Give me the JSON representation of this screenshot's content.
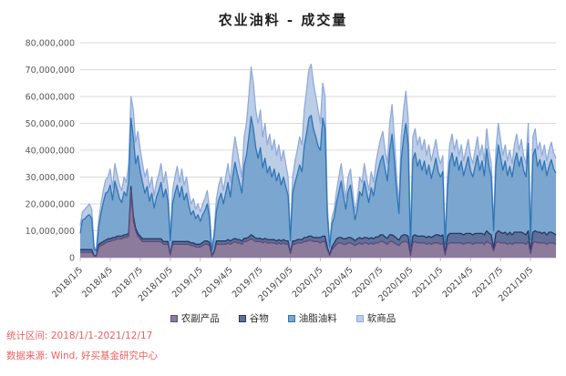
{
  "colors": {
    "note_red": "#f05f5f",
    "axis_text": "#595959",
    "grid_line": "#d9d9d9",
    "axis_line": "#bfbfbf",
    "title_text": "#1f1f1f"
  },
  "footer": {
    "stat_range": "统计区间: 2018/1/1-2021/12/17",
    "data_source": "数据来源: Wind, 好买基金研究中心"
  },
  "chart_data": {
    "type": "area",
    "stacked": true,
    "title": "农业油料 - 成交量",
    "xlabel": "",
    "ylabel": "",
    "unit": 1000000,
    "ylim": [
      0,
      80000000
    ],
    "grid": true,
    "legend_position": "bottom",
    "y_tick_labels": [
      "0",
      "10,000,000",
      "20,000,000",
      "30,000,000",
      "40,000,000",
      "50,000,000",
      "60,000,000",
      "70,000,000",
      "80,000,000"
    ],
    "x_tick_labels": [
      "2018/1/5",
      "2018/4/5",
      "2018/7/5",
      "2018/10/5",
      "2019/1/5",
      "2019/4/5",
      "2019/7/5",
      "2019/10/5",
      "2020/1/5",
      "2020/4/5",
      "2020/7/5",
      "2020/10/5",
      "2021/1/5",
      "2021/4/5",
      "2021/7/5",
      "2021/10/5"
    ],
    "tick_every": 13,
    "series": [
      {
        "name": "农副产品",
        "fill": "#8d7b9c",
        "stroke": "#5d4a7e",
        "values": [
          2,
          2,
          2,
          2,
          2,
          2,
          0.6,
          0.5,
          4,
          4.5,
          5,
          5.5,
          6,
          6,
          6.5,
          6.5,
          7,
          7,
          7,
          7.5,
          7.5,
          8,
          25,
          14,
          10,
          8,
          7,
          6,
          6,
          6,
          6,
          6,
          6,
          6,
          6,
          6,
          5,
          5,
          5,
          1,
          5,
          5,
          5,
          5,
          5,
          5,
          5,
          5,
          4.5,
          4.5,
          4,
          4,
          4,
          4.5,
          5,
          5,
          4.5,
          0.5,
          2,
          5,
          5,
          5,
          5,
          5,
          5.5,
          5,
          5.5,
          6,
          5.5,
          5.5,
          5,
          6,
          6,
          6.5,
          7,
          6.5,
          6,
          6,
          6,
          5.5,
          6,
          5.5,
          5.5,
          5.5,
          5.5,
          5,
          5.5,
          5,
          5.5,
          5,
          5,
          1.5,
          5,
          5,
          5.5,
          5.5,
          5.5,
          6,
          6,
          6.5,
          6.5,
          6,
          6,
          6,
          5.5,
          6,
          6,
          3,
          0.8,
          3,
          4,
          5,
          5.5,
          5.5,
          5,
          5,
          5.5,
          5.5,
          5,
          4.5,
          5,
          5.5,
          5,
          5.5,
          5.5,
          5,
          5.5,
          5,
          5.5,
          5.5,
          6,
          6,
          5.5,
          5,
          6,
          6,
          5.5,
          5,
          4.5,
          5.5,
          6,
          6,
          5.5,
          0.8,
          5.5,
          6,
          5.5,
          5.5,
          5.5,
          5.5,
          5,
          5.5,
          5,
          5.5,
          5.5,
          5.5,
          5,
          5.5,
          1,
          5,
          5.5,
          5.5,
          5.5,
          5.5,
          5.5,
          5.5,
          5,
          5.5,
          5.5,
          5.5,
          5,
          5.5,
          5.5,
          5.5,
          5.5,
          5,
          6,
          5.5,
          5,
          2.5,
          5.5,
          6,
          5.5,
          5.5,
          5.5,
          5,
          5.5,
          5,
          5.5,
          5.5,
          5.5,
          5.5,
          5.5,
          5,
          6,
          1.5,
          5.5,
          6,
          5.5,
          5.5,
          5.5,
          5.5,
          5,
          5.5,
          5.5,
          5.5,
          5
        ]
      },
      {
        "name": "谷物",
        "fill": "#5f7099",
        "stroke": "#203864",
        "values": [
          1,
          1,
          1,
          1,
          1,
          1,
          0.2,
          0.2,
          1,
          1,
          1,
          1,
          1,
          1,
          1,
          1,
          1,
          1,
          1,
          1,
          1,
          1.2,
          1.5,
          1.5,
          1,
          1,
          1,
          1,
          1,
          1,
          1,
          1,
          1,
          1,
          1,
          1,
          1,
          1,
          1,
          0.3,
          1,
          1,
          1,
          1,
          1,
          1,
          1,
          1,
          1,
          1,
          1,
          1,
          1,
          1.2,
          1.2,
          1.2,
          1.2,
          0.2,
          0.5,
          1.2,
          1.2,
          1.2,
          1.2,
          1.2,
          1.2,
          1.2,
          1.2,
          1.2,
          1.2,
          1.2,
          1.2,
          1.2,
          1.2,
          1.2,
          1.5,
          1.5,
          1.2,
          1.2,
          1.2,
          1.2,
          1.2,
          1.2,
          1.2,
          1.2,
          1.2,
          1.2,
          1.2,
          1.2,
          1.2,
          1.2,
          1.2,
          0.4,
          1.2,
          1.2,
          1.2,
          1.2,
          1.2,
          1.5,
          1.5,
          1.5,
          1.5,
          1.5,
          1.5,
          1.5,
          2,
          2,
          2,
          1,
          0.3,
          1,
          1.5,
          2,
          2,
          2,
          2,
          2,
          2,
          2,
          2,
          1.8,
          2,
          2,
          2,
          2,
          2,
          2,
          2,
          2,
          2.2,
          2.2,
          2.5,
          2.5,
          2.2,
          2.2,
          2.5,
          2.5,
          2.5,
          2.2,
          2,
          2.5,
          2.5,
          2.5,
          2.5,
          0.3,
          2.5,
          2.5,
          2.5,
          2.5,
          2.5,
          2.5,
          2.5,
          2.5,
          2.5,
          2.5,
          3,
          3,
          3,
          3,
          0.5,
          3,
          3.5,
          3.5,
          3.5,
          3.5,
          3.5,
          3.5,
          3.5,
          3.5,
          3.5,
          3.5,
          3.5,
          3.5,
          3.5,
          3.5,
          3.5,
          3.5,
          4,
          3.5,
          3.5,
          1,
          3.5,
          4,
          4,
          3.5,
          4,
          3.5,
          4,
          3.5,
          4,
          4,
          4,
          4,
          3.5,
          3.5,
          4,
          0.7,
          4,
          4,
          4,
          4,
          3.5,
          4,
          3.5,
          4,
          4,
          3.5,
          3.5
        ]
      },
      {
        "name": "油脂油料",
        "fill": "#7ba6cf",
        "stroke": "#2e75b6",
        "values": [
          6,
          11,
          11.5,
          12.5,
          13,
          11.5,
          2.4,
          1.7,
          6.5,
          11,
          14.5,
          17.5,
          17.5,
          20,
          14,
          21,
          17.5,
          14,
          12.5,
          16,
          14.5,
          19.3,
          25.5,
          29.5,
          24,
          29,
          24,
          21,
          17,
          19.5,
          14,
          17,
          11.5,
          15.5,
          18,
          21,
          16.5,
          19.5,
          15,
          5,
          14,
          18,
          21,
          16.5,
          20.5,
          15.5,
          18,
          13.5,
          10.5,
          12,
          9.5,
          11,
          8.5,
          10.3,
          11.3,
          13.8,
          8.8,
          1.7,
          5.5,
          11.3,
          15.3,
          17.8,
          13.8,
          17.8,
          21.3,
          16.3,
          23.3,
          28.3,
          24.8,
          21.3,
          17.8,
          27.3,
          30.8,
          37.3,
          44,
          40,
          33.8,
          29.8,
          33.8,
          26.8,
          29.8,
          24.8,
          27.3,
          23.3,
          26.3,
          22.3,
          24.8,
          20.8,
          23.3,
          20.3,
          16.8,
          4.5,
          17.8,
          21.8,
          24.3,
          27.8,
          25.3,
          34,
          38.5,
          44,
          45,
          40.5,
          37.5,
          34,
          32.5,
          44,
          40,
          12,
          2.9,
          8.5,
          9.5,
          13.5,
          17,
          21,
          16,
          11,
          17,
          19.5,
          13.5,
          7.7,
          11,
          17,
          16,
          21,
          17,
          13.5,
          18.5,
          16,
          20.8,
          24.8,
          27.5,
          29.5,
          25.3,
          21.3,
          31.5,
          37.5,
          28.5,
          17.3,
          10,
          28.5,
          36,
          41.5,
          34,
          2.9,
          28.5,
          30.5,
          26,
          28.5,
          24.5,
          28,
          23.5,
          26.5,
          22,
          25,
          28.5,
          23.5,
          22,
          23.5,
          3.5,
          17,
          26.5,
          30,
          25,
          28.5,
          23.5,
          27,
          22,
          25,
          28.5,
          23.5,
          21.5,
          25,
          29,
          23.5,
          27,
          22,
          30.5,
          25,
          21.5,
          6.5,
          25,
          32,
          28,
          23.5,
          26.5,
          22,
          24.5,
          21.5,
          26,
          29.5,
          24.5,
          28,
          23.5,
          21.5,
          32.5,
          4.5,
          28.5,
          30.5,
          24.5,
          27,
          23.5,
          26.5,
          22,
          24.5,
          27,
          24,
          23
        ]
      },
      {
        "name": "软商品",
        "fill": "#bccde6",
        "stroke": "#8faadc",
        "values": [
          3,
          3,
          3.5,
          3.5,
          4,
          3.5,
          0.8,
          0.6,
          2.5,
          3.5,
          4.5,
          5,
          5.5,
          6,
          4.5,
          6.5,
          5.5,
          5,
          4.5,
          5.5,
          5,
          6.5,
          8,
          10,
          8,
          9,
          8,
          7,
          6,
          6.5,
          5,
          6,
          4.5,
          5.5,
          6,
          7,
          5.5,
          6.5,
          5,
          1.7,
          5,
          6,
          7,
          5.5,
          6.5,
          5.5,
          6,
          4.5,
          4,
          4.5,
          3.5,
          4,
          3.5,
          4,
          4.5,
          5,
          3.5,
          0.6,
          2,
          4.5,
          5.5,
          6,
          5,
          6,
          7,
          5.5,
          8,
          9.5,
          8.5,
          7,
          6,
          10.5,
          12,
          15,
          18.5,
          17,
          14,
          13,
          14,
          11.5,
          13,
          10.5,
          12,
          10,
          11,
          9.5,
          10.5,
          9,
          10,
          8.5,
          7,
          1.6,
          6,
          8,
          9,
          10.5,
          10,
          13.5,
          16,
          18,
          19,
          17,
          15,
          13.5,
          10,
          13,
          12,
          4,
          1,
          2.5,
          3,
          4.5,
          5.5,
          6.5,
          5,
          4,
          5.5,
          6,
          4.5,
          3,
          4,
          5.5,
          5,
          6.5,
          5.5,
          4.5,
          6,
          5,
          6.5,
          7.5,
          8,
          9,
          7,
          6.5,
          10,
          11,
          8.5,
          5.5,
          3.5,
          8.5,
          10.5,
          12,
          10,
          1,
          8.5,
          9,
          8,
          8.5,
          7.5,
          8,
          7,
          7.5,
          6.5,
          7,
          7,
          6,
          5,
          6,
          1,
          5,
          6.5,
          7,
          6,
          6.5,
          5.5,
          6,
          5.5,
          6,
          6.5,
          5.5,
          5,
          6,
          7,
          5.5,
          6,
          5.5,
          7.5,
          6,
          5,
          2,
          6,
          8,
          6.5,
          5.5,
          6,
          5.5,
          6,
          5,
          6.5,
          7,
          6,
          6.5,
          5.5,
          5,
          7.5,
          1.3,
          7,
          7.5,
          6,
          6.5,
          5.5,
          6,
          5.5,
          6,
          6.5,
          6,
          5.5
        ]
      }
    ]
  }
}
